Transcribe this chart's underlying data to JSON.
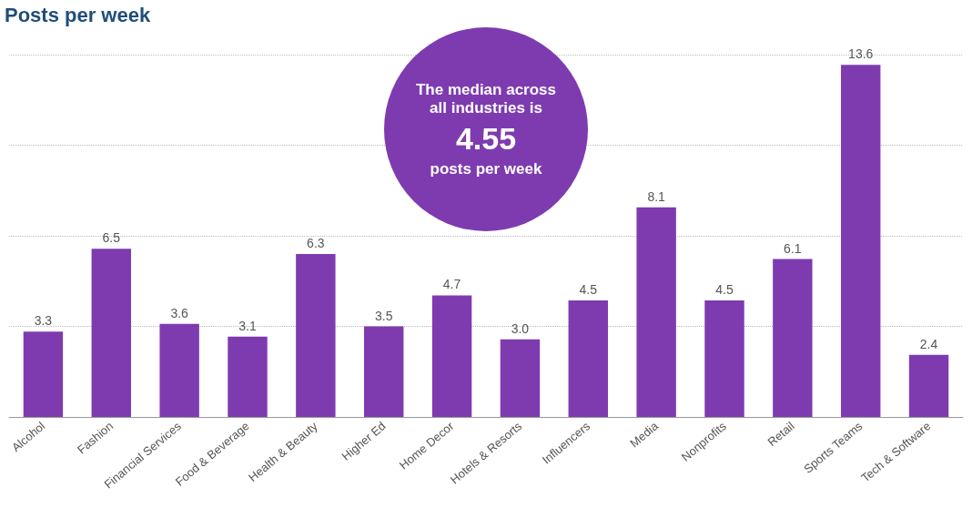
{
  "chart_data": {
    "type": "bar",
    "title": "Posts per week",
    "categories": [
      "Alcohol",
      "Fashion",
      "Financial Services",
      "Food & Beverage",
      "Health & Beauty",
      "Higher Ed",
      "Home Decor",
      "Hotels & Resorts",
      "Influencers",
      "Media",
      "Nonprofits",
      "Retail",
      "Sports Teams",
      "Tech & Software"
    ],
    "values": [
      3.3,
      6.5,
      3.6,
      3.1,
      6.3,
      3.5,
      4.7,
      3.0,
      4.5,
      8.1,
      4.5,
      6.1,
      13.6,
      2.4
    ],
    "color": "#7e3bb0",
    "ylim": [
      0,
      14
    ],
    "yticks": [
      {
        "value": 3.5,
        "label": null
      },
      {
        "value": 7,
        "label": null
      },
      {
        "value": 10.5,
        "label": null
      },
      {
        "value": 14,
        "label": null
      }
    ],
    "grid": "y",
    "tick_labels": "x",
    "value_labels": [
      "3.3",
      "6.5",
      "3.6",
      "3.1",
      "6.3",
      "3.5",
      "4.7",
      "3.0",
      "4.5",
      "8.1",
      "4.5",
      "6.1",
      "13.6",
      "2.4"
    ],
    "annotations": [
      "The median across all industries is",
      "4.55",
      "posts per week"
    ]
  }
}
